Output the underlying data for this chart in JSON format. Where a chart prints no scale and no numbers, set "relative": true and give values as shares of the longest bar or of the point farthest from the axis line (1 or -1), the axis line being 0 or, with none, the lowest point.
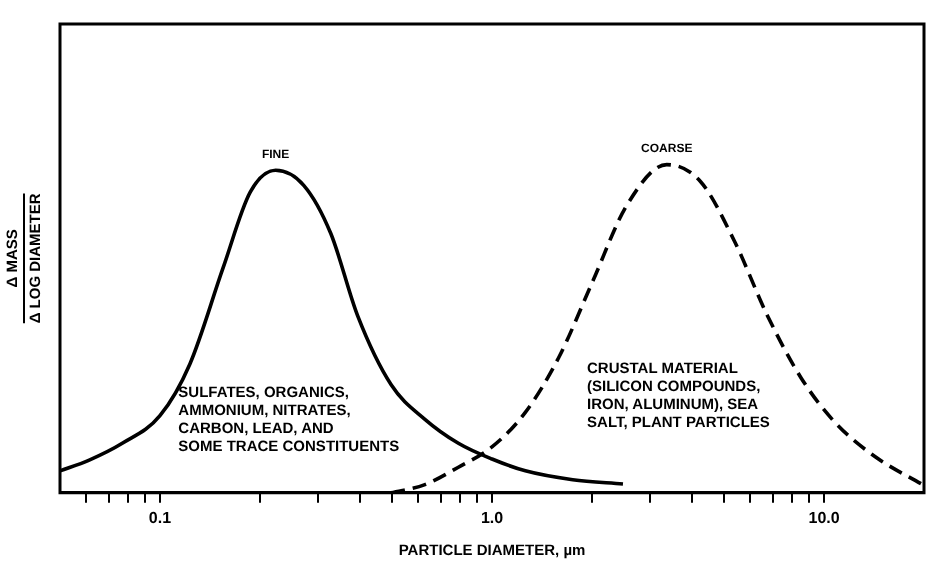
{
  "chart_data": {
    "type": "line",
    "relative": true,
    "log": "x",
    "xlabel": "PARTICLE DIAMETER, µm",
    "ylabel": "Δ MASS\nΔ LOG DIAMETER",
    "xlim": [
      0.05,
      20
    ],
    "xticks": [
      {
        "value": 0.06,
        "label": null
      },
      {
        "value": 0.07,
        "label": null
      },
      {
        "value": 0.08,
        "label": null
      },
      {
        "value": 0.09,
        "label": null
      },
      {
        "value": 0.1,
        "label": "0.1"
      },
      {
        "value": 0.2,
        "label": null
      },
      {
        "value": 0.3,
        "label": null
      },
      {
        "value": 0.4,
        "label": null
      },
      {
        "value": 0.5,
        "label": null
      },
      {
        "value": 0.6,
        "label": null
      },
      {
        "value": 0.7,
        "label": null
      },
      {
        "value": 0.8,
        "label": null
      },
      {
        "value": 0.9,
        "label": null
      },
      {
        "value": 1,
        "label": "1.0"
      },
      {
        "value": 2,
        "label": null
      },
      {
        "value": 3,
        "label": null
      },
      {
        "value": 4,
        "label": null
      },
      {
        "value": 5,
        "label": null
      },
      {
        "value": 6,
        "label": null
      },
      {
        "value": 7,
        "label": null
      },
      {
        "value": 8,
        "label": null
      },
      {
        "value": 9,
        "label": null
      },
      {
        "value": 10,
        "label": "10.0"
      }
    ],
    "grid": false,
    "legend": false,
    "marker": "none",
    "series": [
      {
        "name": "FINE",
        "color": "#000000",
        "line_style": "solid",
        "x": [
          0.05,
          0.061,
          0.077,
          0.1,
          0.123,
          0.155,
          0.187,
          0.223,
          0.271,
          0.327,
          0.394,
          0.497,
          0.628,
          0.792,
          1.0,
          1.26,
          1.75,
          2.48
        ],
        "values": [
          0.067,
          0.099,
          0.151,
          0.235,
          0.392,
          0.686,
          0.916,
          0.983,
          0.937,
          0.79,
          0.539,
          0.329,
          0.224,
          0.151,
          0.103,
          0.067,
          0.04,
          0.027
        ]
      },
      {
        "name": "COARSE",
        "color": "#000000",
        "line_style": "dashed",
        "x": [
          0.497,
          0.628,
          0.792,
          1.0,
          1.26,
          1.59,
          2.01,
          2.54,
          3.36,
          4.25,
          5.36,
          6.76,
          8.53,
          10.8,
          14.3,
          19.8
        ],
        "values": [
          0,
          0.025,
          0.078,
          0.14,
          0.245,
          0.413,
          0.644,
          0.874,
          1,
          0.948,
          0.769,
          0.539,
          0.35,
          0.214,
          0.109,
          0.025
        ]
      }
    ],
    "annotations": [
      "SULFATES, ORGANICS,\nAMMONIUM, NITRATES,\nCARBON, LEAD, AND\nSOME TRACE CONSTITUENTS",
      "CRUSTAL MATERIAL\n(SILICON COMPOUNDS,\nIRON, ALUMINUM), SEA\nSALT, PLANT PARTICLES"
    ]
  }
}
